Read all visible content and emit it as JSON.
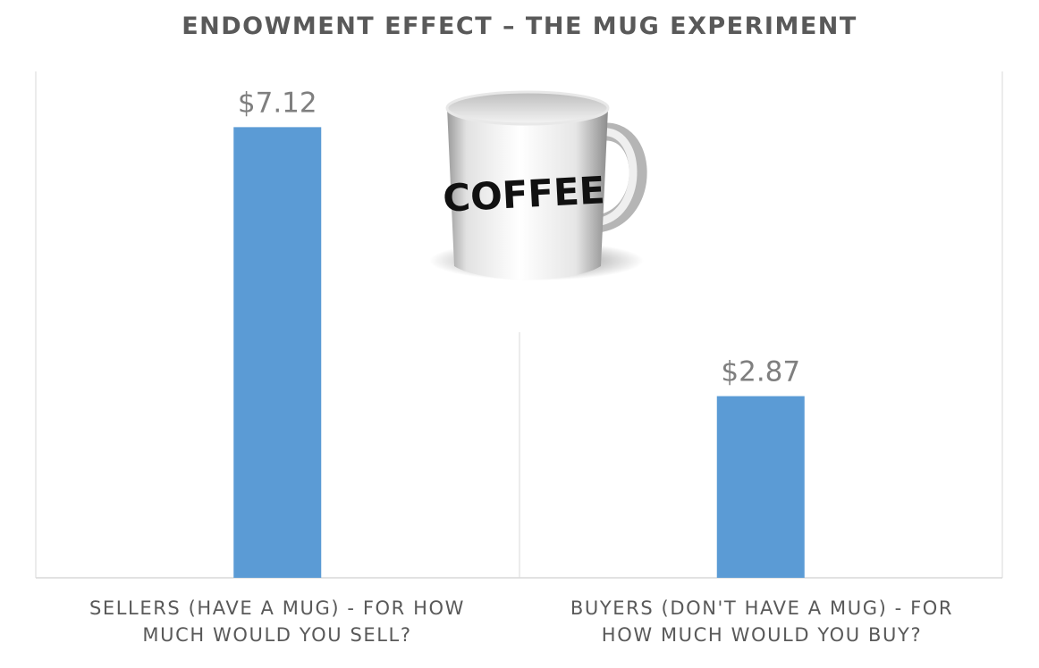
{
  "chart_data": {
    "type": "bar",
    "title": "ENDOWMENT EFFECT – THE MUG EXPERIMENT",
    "categories": [
      "SELLERS  (HAVE A MUG) - FOR HOW\nMUCH WOULD YOU SELL?",
      "BUYERS (DON'T HAVE A MUG) - FOR\nHOW MUCH WOULD YOU BUY?"
    ],
    "values": [
      7.12,
      2.87
    ],
    "data_labels": [
      "$7.12",
      "$2.87"
    ],
    "ylim": [
      0,
      8
    ],
    "grid": false,
    "legend": "none",
    "bar_color": "#5b9bd5"
  },
  "illustration": {
    "icon": "coffee-mug-icon",
    "text": "COFFEE"
  }
}
